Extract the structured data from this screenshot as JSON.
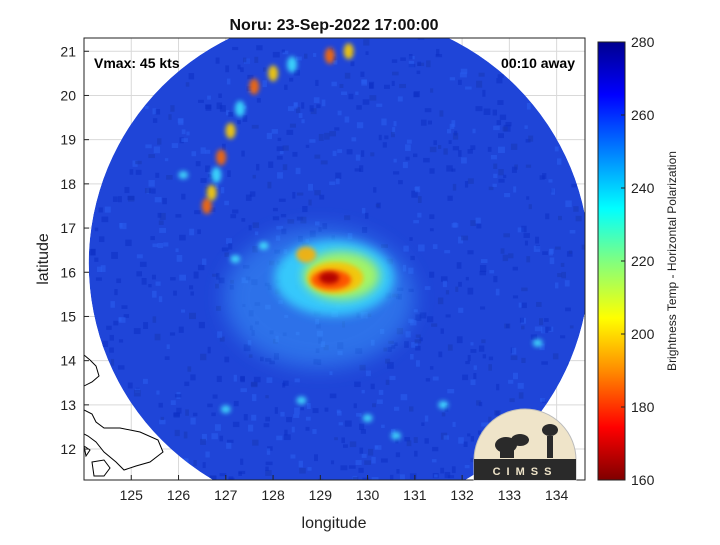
{
  "chart_data": {
    "type": "heatmap",
    "title": "Noru: 23-Sep-2022 17:00:00",
    "xlabel": "longitude",
    "ylabel": "latitude",
    "xlim": [
      124.0,
      134.6
    ],
    "ylim": [
      11.3,
      21.3
    ],
    "x_ticks": [
      125,
      126,
      127,
      128,
      129,
      130,
      131,
      132,
      133,
      134
    ],
    "y_ticks": [
      12,
      13,
      14,
      15,
      16,
      17,
      18,
      19,
      20,
      21
    ],
    "grid": true,
    "annotations": {
      "vmax": "Vmax: 45 kts",
      "time_offset": "00:10 away"
    },
    "colorbar": {
      "label": "Brightness Temp - Horizontal Polarization",
      "range": [
        160,
        280
      ],
      "ticks": [
        160,
        180,
        200,
        220,
        240,
        260,
        280
      ],
      "colormap": [
        "#7f0000",
        "#ff0000",
        "#ff8c00",
        "#ffff00",
        "#80ff80",
        "#00ffff",
        "#0080ff",
        "#0000ff",
        "#00008f"
      ]
    },
    "storm_center": {
      "lon": 129.4,
      "lat": 16.1
    },
    "scan_swath": {
      "center_lon": 129.4,
      "center_lat": 16.2,
      "radius_deg": 5.3
    }
  },
  "logo": {
    "text": "CIMSS"
  }
}
